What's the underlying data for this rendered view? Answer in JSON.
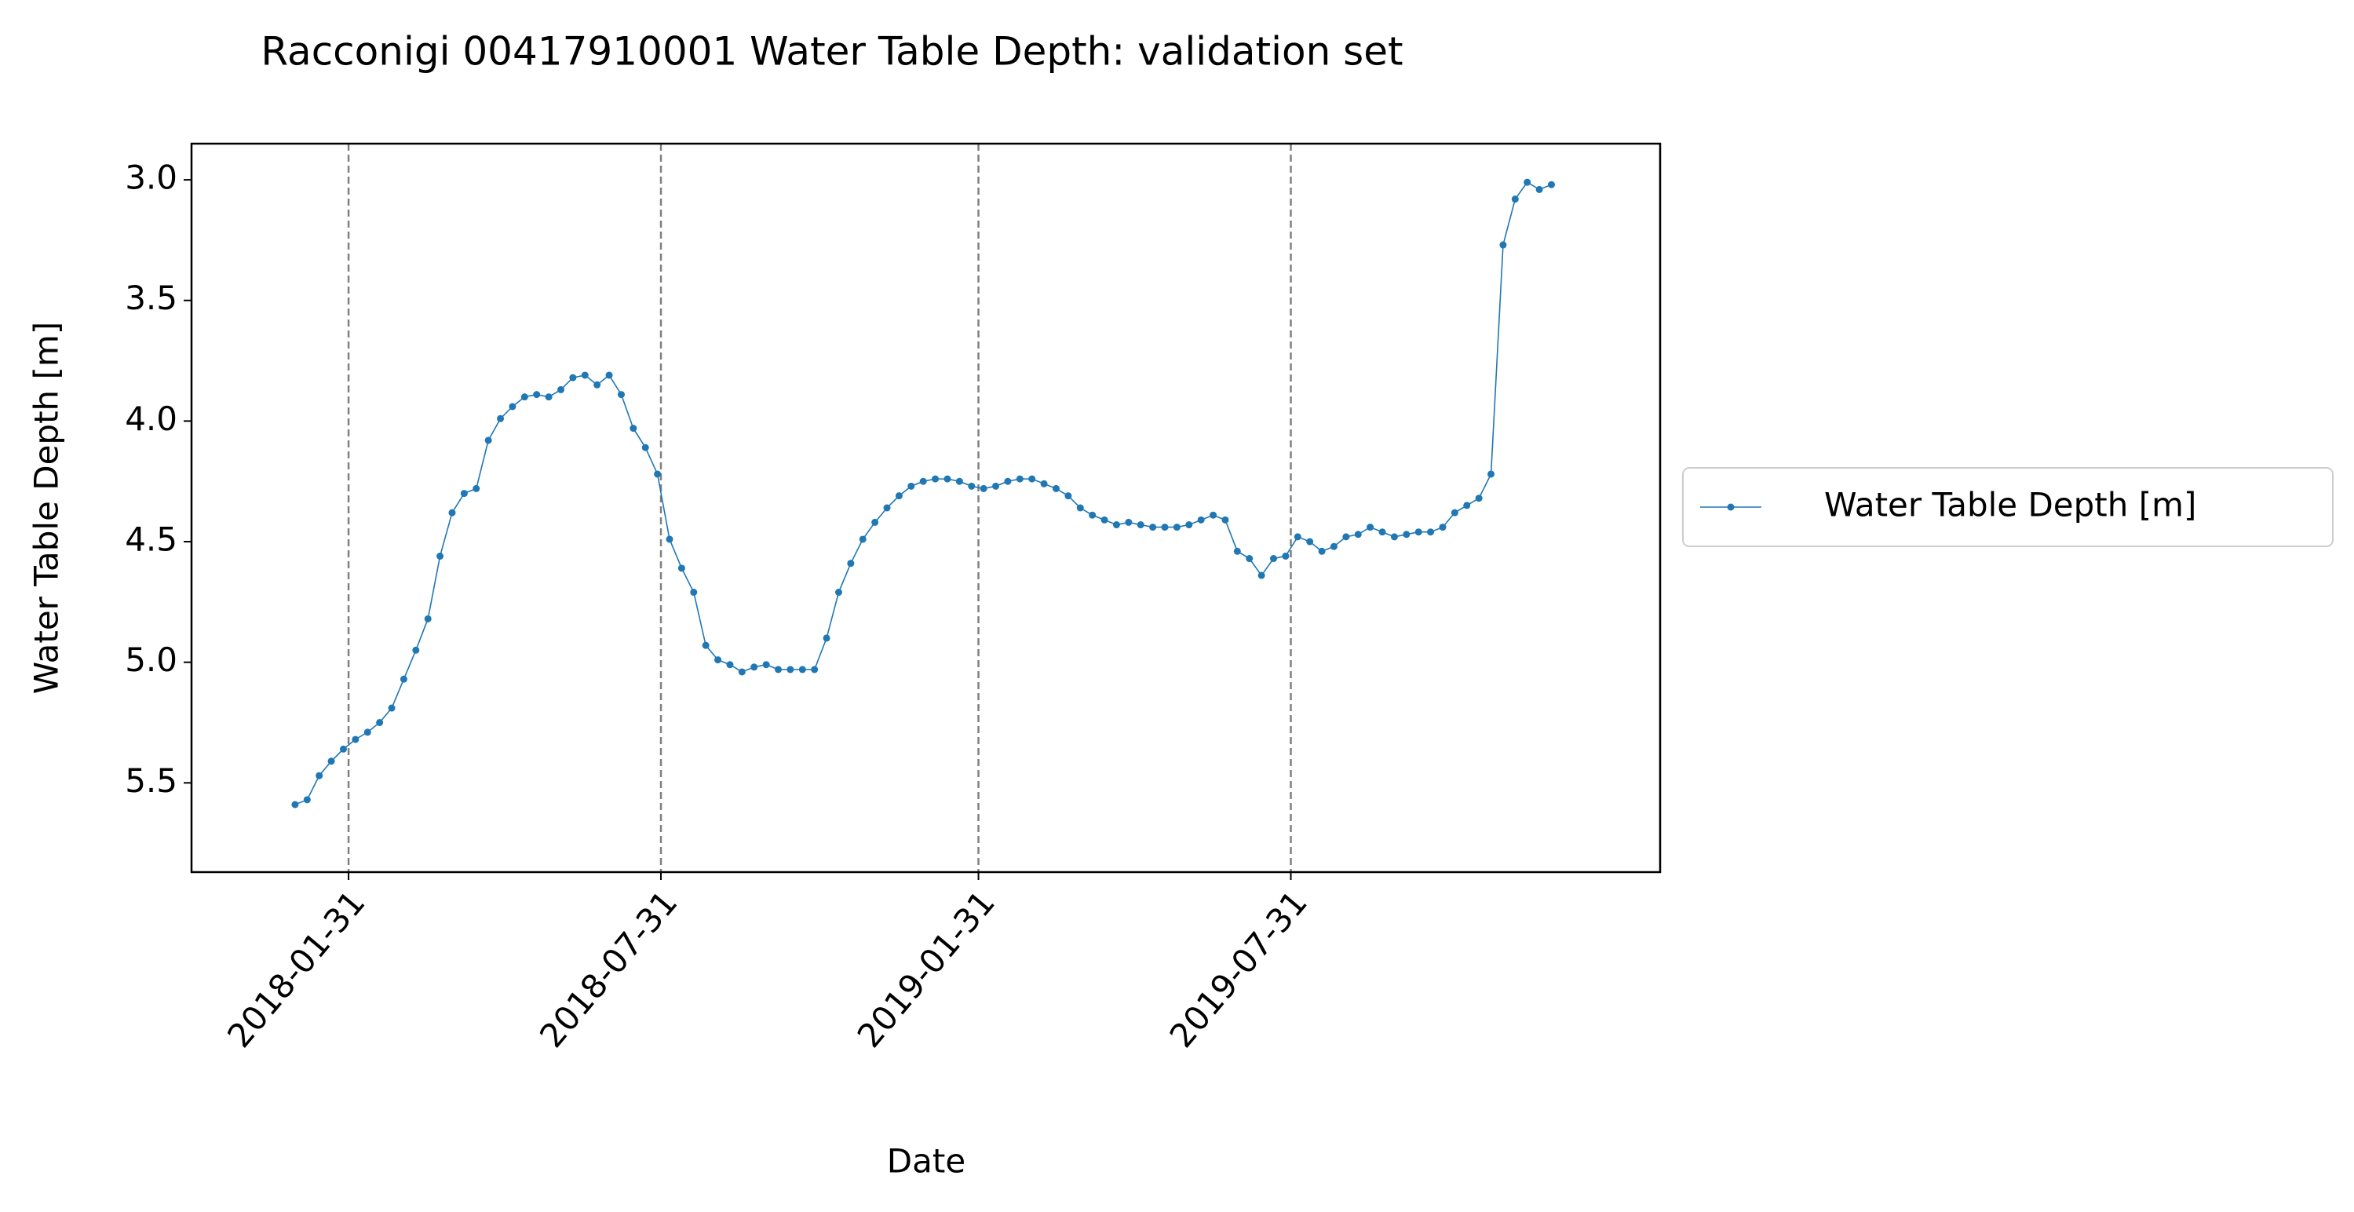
{
  "chart_data": {
    "type": "line",
    "title": "Racconigi 00417910001 Water Table Depth: validation set",
    "xlabel": "Date",
    "ylabel": "Water Table Depth [m]",
    "x": [
      "2017-12-31",
      "2018-01-07",
      "2018-01-14",
      "2018-01-21",
      "2018-01-28",
      "2018-02-04",
      "2018-02-11",
      "2018-02-18",
      "2018-02-25",
      "2018-03-04",
      "2018-03-11",
      "2018-03-18",
      "2018-03-25",
      "2018-04-01",
      "2018-04-08",
      "2018-04-15",
      "2018-04-22",
      "2018-04-29",
      "2018-05-06",
      "2018-05-13",
      "2018-05-20",
      "2018-05-27",
      "2018-06-03",
      "2018-06-10",
      "2018-06-17",
      "2018-06-24",
      "2018-07-01",
      "2018-07-08",
      "2018-07-15",
      "2018-07-22",
      "2018-07-29",
      "2018-08-05",
      "2018-08-12",
      "2018-08-19",
      "2018-08-26",
      "2018-09-02",
      "2018-09-09",
      "2018-09-16",
      "2018-09-23",
      "2018-09-30",
      "2018-10-07",
      "2018-10-14",
      "2018-10-21",
      "2018-10-28",
      "2018-11-04",
      "2018-11-11",
      "2018-11-18",
      "2018-11-25",
      "2018-12-02",
      "2018-12-09",
      "2018-12-16",
      "2018-12-23",
      "2018-12-30",
      "2019-01-06",
      "2019-01-13",
      "2019-01-20",
      "2019-01-27",
      "2019-02-03",
      "2019-02-10",
      "2019-02-17",
      "2019-02-24",
      "2019-03-03",
      "2019-03-10",
      "2019-03-17",
      "2019-03-24",
      "2019-03-31",
      "2019-04-07",
      "2019-04-14",
      "2019-04-21",
      "2019-04-28",
      "2019-05-05",
      "2019-05-12",
      "2019-05-19",
      "2019-05-26",
      "2019-06-02",
      "2019-06-09",
      "2019-06-16",
      "2019-06-23",
      "2019-06-30",
      "2019-07-07",
      "2019-07-14",
      "2019-07-21",
      "2019-07-28",
      "2019-08-04",
      "2019-08-11",
      "2019-08-18",
      "2019-08-25",
      "2019-09-01",
      "2019-09-08",
      "2019-09-15",
      "2019-09-22",
      "2019-09-29",
      "2019-10-06",
      "2019-10-13",
      "2019-10-20",
      "2019-10-27",
      "2019-11-03",
      "2019-11-10",
      "2019-11-17",
      "2019-11-24",
      "2019-12-01",
      "2019-12-08",
      "2019-12-15",
      "2019-12-22",
      "2019-12-29"
    ],
    "series": [
      {
        "name": "Water Table Depth [m]",
        "color": "#1f77b4",
        "values": [
          5.59,
          5.57,
          5.47,
          5.41,
          5.36,
          5.32,
          5.29,
          5.25,
          5.19,
          5.07,
          4.95,
          4.82,
          4.56,
          4.38,
          4.3,
          4.28,
          4.08,
          3.99,
          3.94,
          3.9,
          3.89,
          3.9,
          3.87,
          3.82,
          3.81,
          3.85,
          3.81,
          3.89,
          4.03,
          4.11,
          4.22,
          4.49,
          4.61,
          4.71,
          4.93,
          4.99,
          5.01,
          5.04,
          5.02,
          5.01,
          5.03,
          5.03,
          5.03,
          5.03,
          4.9,
          4.71,
          4.59,
          4.49,
          4.42,
          4.36,
          4.31,
          4.27,
          4.25,
          4.24,
          4.24,
          4.25,
          4.27,
          4.28,
          4.27,
          4.25,
          4.24,
          4.24,
          4.26,
          4.28,
          4.31,
          4.36,
          4.39,
          4.41,
          4.43,
          4.42,
          4.43,
          4.44,
          4.44,
          4.44,
          4.43,
          4.41,
          4.39,
          4.41,
          4.54,
          4.57,
          4.64,
          4.57,
          4.56,
          4.48,
          4.5,
          4.54,
          4.52,
          4.48,
          4.47,
          4.44,
          4.46,
          4.48,
          4.47,
          4.46,
          4.46,
          4.44,
          4.38,
          4.35,
          4.32,
          4.22,
          3.27,
          3.08,
          3.01,
          3.04,
          3.02
        ]
      }
    ],
    "xlim": [
      "2017-11-01",
      "2020-03-01"
    ],
    "xticks": [
      "2018-01-31",
      "2018-07-31",
      "2019-01-31",
      "2019-07-31"
    ],
    "ylim": [
      2.85,
      5.87
    ],
    "y_inverted": true,
    "yticks": [
      {
        "value": 3,
        "label": "3.0"
      },
      3.5,
      {
        "value": 4,
        "label": "4.0"
      },
      4.5,
      {
        "value": 5,
        "label": "5.0"
      },
      5.5
    ],
    "grid": "x",
    "legend": "right"
  }
}
